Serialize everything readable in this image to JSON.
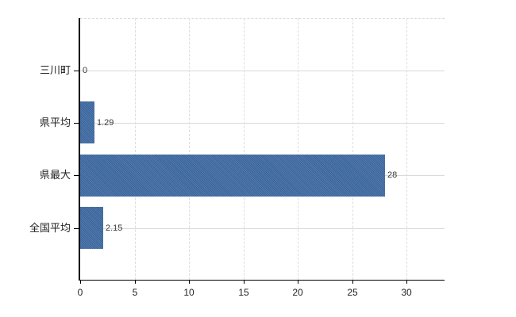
{
  "chart_data": {
    "type": "bar",
    "orientation": "horizontal",
    "title": "",
    "categories": [
      "三川町",
      "県平均",
      "県最大",
      "全国平均"
    ],
    "values": [
      0,
      1.29,
      28,
      2.15
    ],
    "value_labels": [
      "0",
      "1.29",
      "28",
      "2.15"
    ],
    "x_ticks": [
      0,
      5,
      10,
      15,
      20,
      25,
      30
    ],
    "x_tick_labels": [
      "0",
      "5",
      "10",
      "15",
      "20",
      "25",
      "30"
    ],
    "xlim": [
      0,
      33.5
    ],
    "grid": "dashed vertical gridlines at ticks, solid horizontal gridline per category, dashed top border",
    "legend": false,
    "colors": {
      "bar": "#3e6ba5",
      "axis": "#000000",
      "grid_horizontal": "#d6dcd6",
      "grid_vertical": "#dcdcdc",
      "top_border": "#d9d9d9",
      "category_text": "#222222",
      "value_text": "#3a3a3a",
      "tick_text": "#1f1f1f",
      "background": "#ffffff"
    }
  }
}
